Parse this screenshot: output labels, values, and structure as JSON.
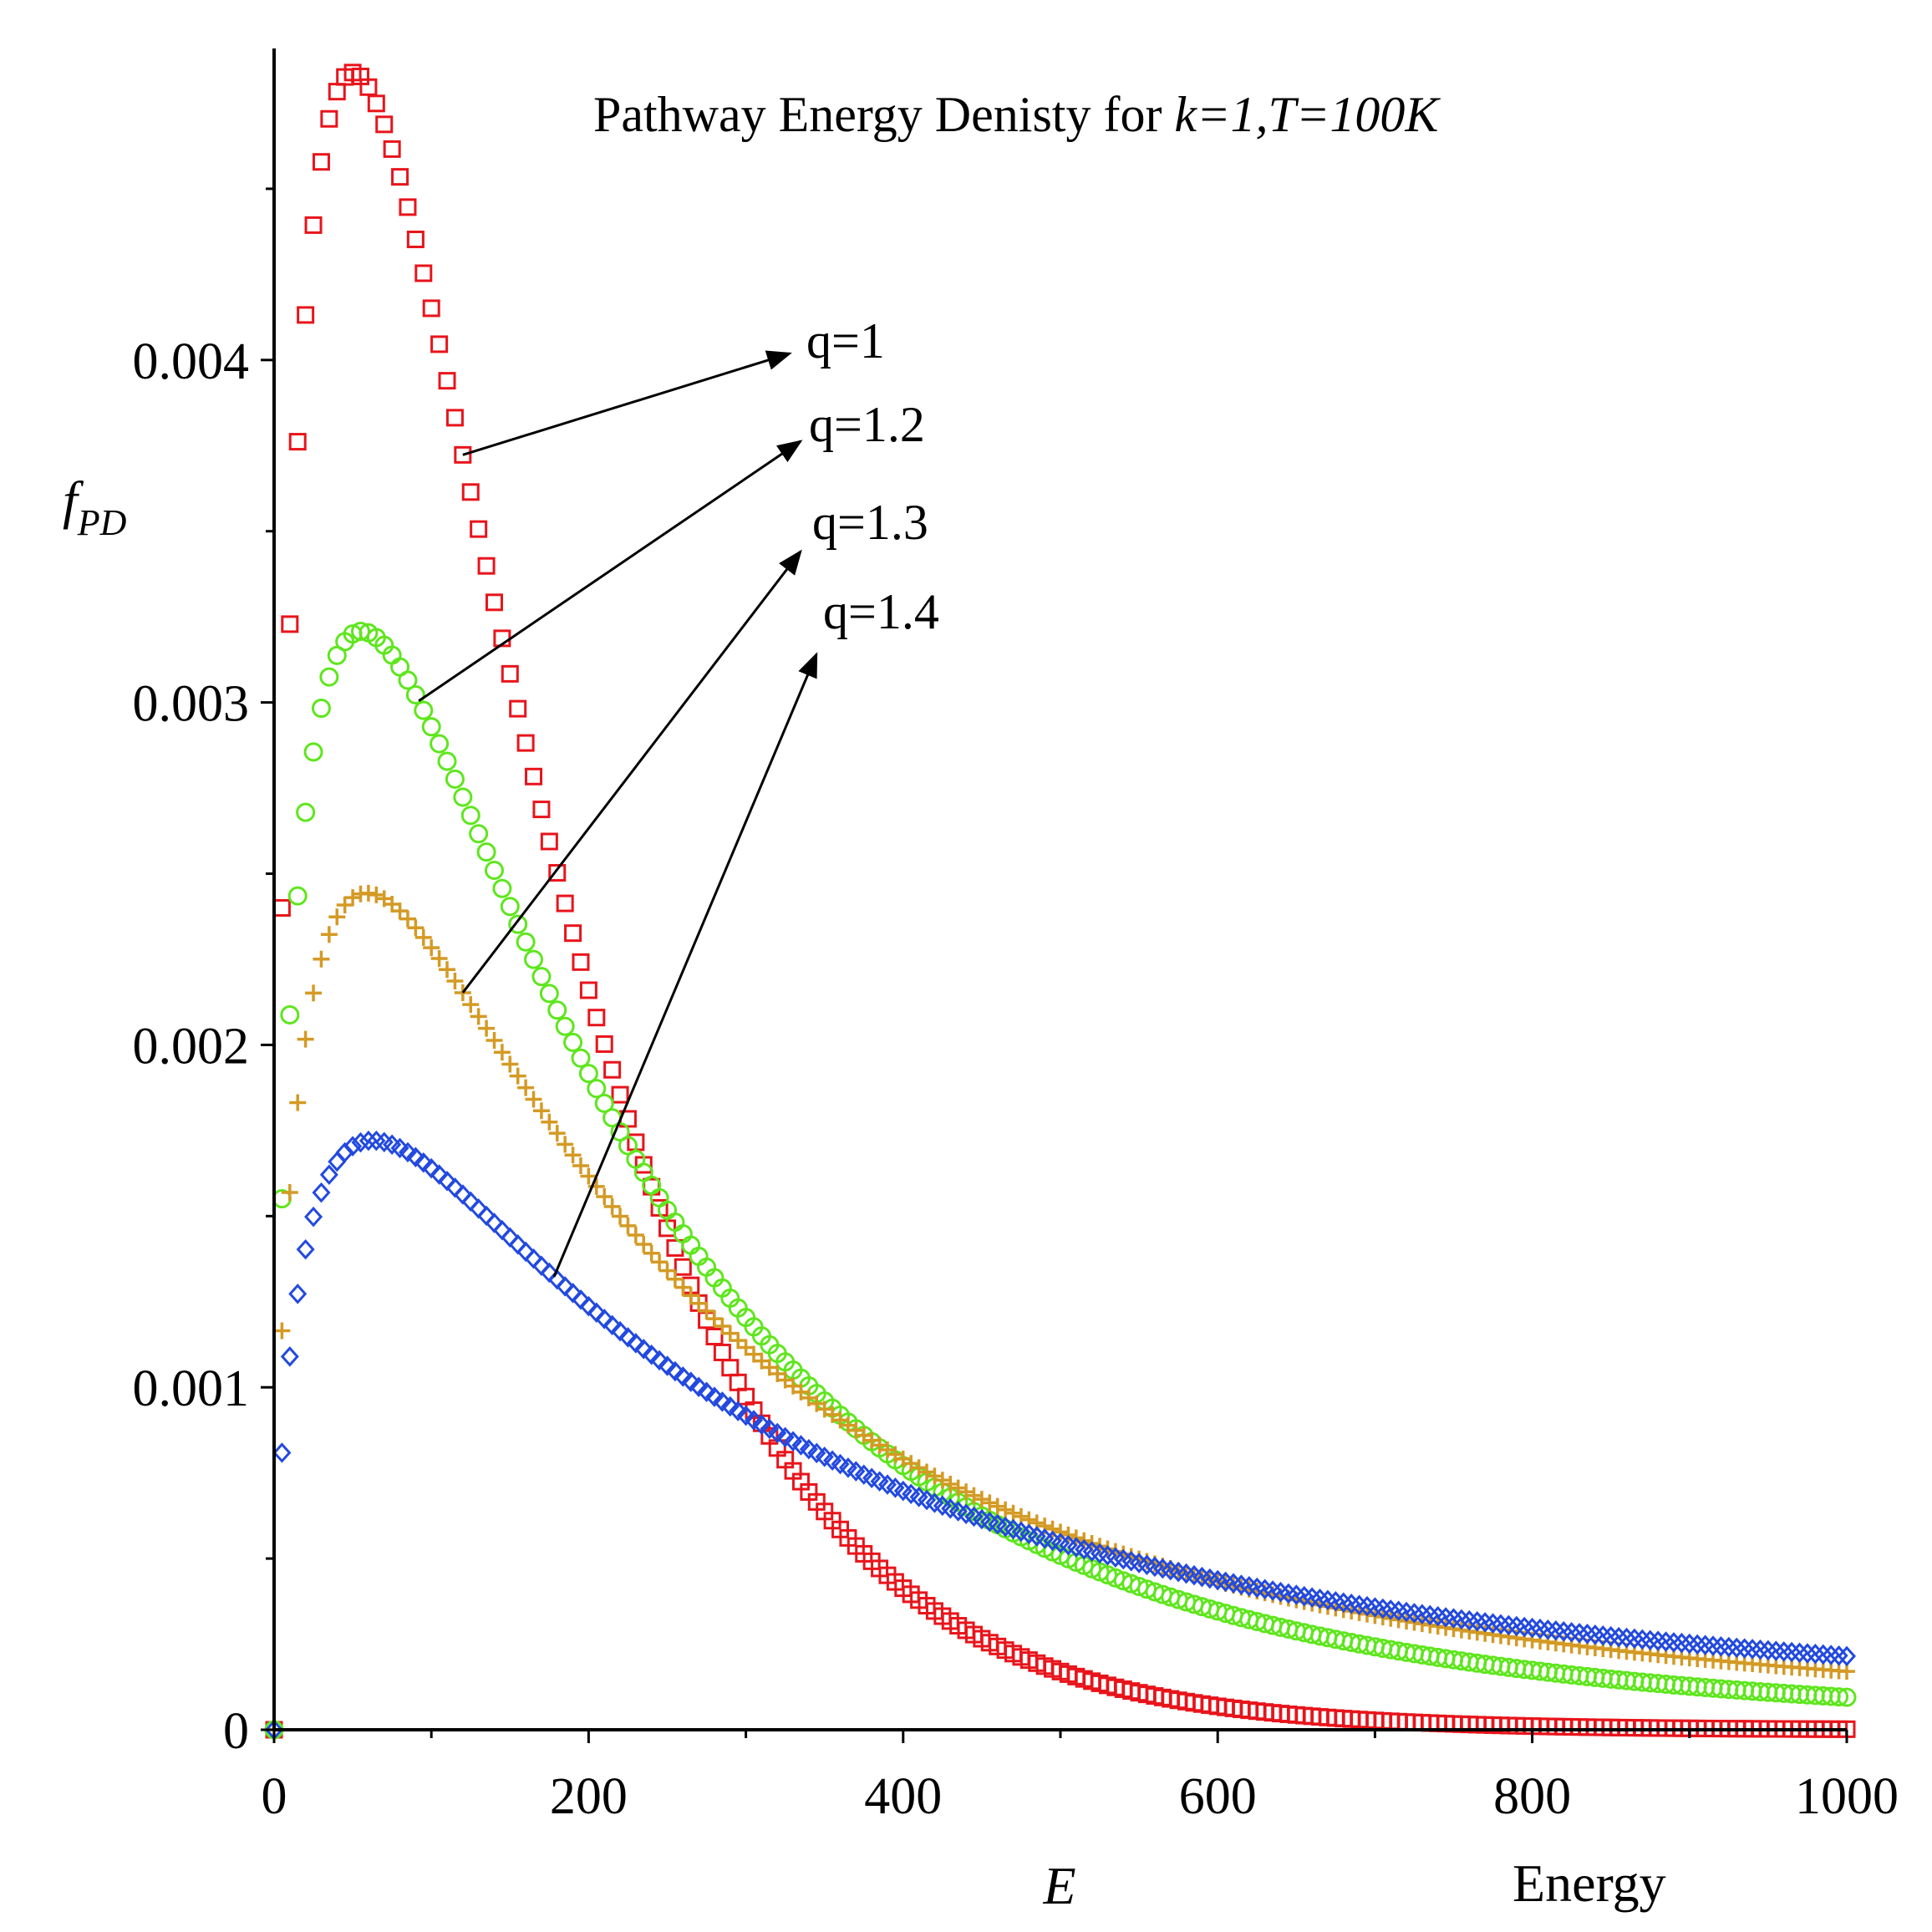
{
  "chart_data": {
    "type": "scatter",
    "title": "Pathway Energy Denisty for ",
    "title_italic": "k=1,T=100K",
    "xlabel": "E",
    "xlabel_extra": "Energy",
    "ylabel_main": "f",
    "ylabel_sub": "PD",
    "xlim": [
      0,
      1000
    ],
    "ylim": [
      0,
      0.0049
    ],
    "x_ticks": [
      0,
      200,
      400,
      600,
      800,
      1000
    ],
    "x_tick_labels": [
      "0",
      "200",
      "400",
      "600",
      "800",
      "1000"
    ],
    "y_ticks": [
      0,
      0.001,
      0.002,
      0.003,
      0.004
    ],
    "y_tick_labels": [
      "0",
      "0.001",
      "0.002",
      "0.003",
      "0.004"
    ],
    "series": [
      {
        "name": "q=1",
        "q": 1.0,
        "marker": "square",
        "color": "#e8141b",
        "label_anchor_x": 120
      },
      {
        "name": "q=1.2",
        "q": 1.2,
        "marker": "circle",
        "color": "#5ee61d",
        "label_anchor_x": 92
      },
      {
        "name": "q=1.3",
        "q": 1.3,
        "marker": "plus",
        "color": "#d49a24",
        "label_anchor_x": 120
      },
      {
        "name": "q=1.4",
        "q": 1.4,
        "marker": "diamond",
        "color": "#2249e0",
        "label_anchor_x": 178
      }
    ],
    "legend_labels": [
      "q=1",
      "q=1.2",
      "q=1.3",
      "q=1.4"
    ],
    "x_sample_step": 5,
    "grid": false
  }
}
